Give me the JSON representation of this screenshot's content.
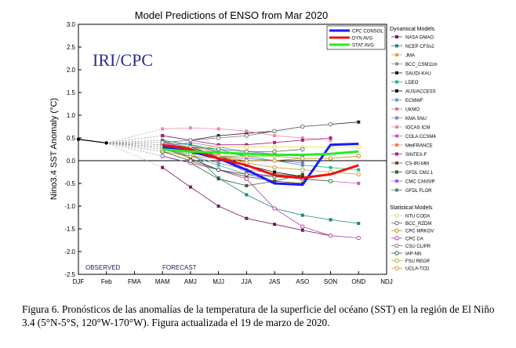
{
  "chart_data": {
    "type": "line",
    "title": "Model Predictions of ENSO from Mar 2020",
    "ylabel": "Nino3.4 SST Anomaly (°C)",
    "xlabel": "",
    "ylim": [
      -2.5,
      3.0
    ],
    "yticks": [
      "3.0",
      "2.5",
      "2.0",
      "1.5",
      "1.0",
      "0.5",
      "0.0",
      "-0.5",
      "-1.0",
      "-1.5",
      "-2.0",
      "-2.5"
    ],
    "categories": [
      "DJF",
      "Feb",
      "FMA",
      "MAM",
      "AMJ",
      "MJJ",
      "JJA",
      "JAS",
      "ASO",
      "SON",
      "OND",
      "NDJ"
    ],
    "grid": false,
    "logo_text": "IRI/CPC",
    "observed_label": "OBSERVED",
    "forecast_label": "FORECAST",
    "observed": {
      "x": [
        0,
        1
      ],
      "values": [
        0.47,
        0.39
      ]
    },
    "averages": [
      {
        "name": "CPC CONSOL",
        "color": "#1a1aff",
        "values": [
          0.3,
          0.2,
          0.05,
          -0.2,
          -0.5,
          -0.53,
          0.35,
          0.37
        ]
      },
      {
        "name": "DYN AVG",
        "color": "#ee1111",
        "values": [
          0.35,
          0.25,
          0.05,
          -0.1,
          -0.32,
          -0.38,
          -0.3,
          -0.1
        ]
      },
      {
        "name": "STAT AVG",
        "color": "#22ee22",
        "values": [
          0.25,
          0.2,
          0.18,
          0.15,
          0.13,
          0.13,
          0.15,
          0.2
        ]
      }
    ],
    "dynamical_title": "Dynamical Models",
    "dynamical_models": [
      {
        "name": "NASA GMAO",
        "color": "#7a1a5c",
        "values": [
          -0.15,
          -0.58,
          -1.0,
          -1.27,
          -1.4,
          -1.53,
          -1.65,
          null
        ]
      },
      {
        "name": "NCEP CFSv2",
        "color": "#1c8a6e",
        "values": [
          0.45,
          0.2,
          -0.38,
          -0.75,
          -1.05,
          -1.2,
          -1.3,
          -1.38
        ]
      },
      {
        "name": "JMA",
        "color": "#e8a33d",
        "values": [
          0.3,
          0.2,
          0.1,
          0.0,
          null,
          null,
          null,
          null
        ]
      },
      {
        "name": "BCC_CSM11m",
        "color": "#9a8a8a",
        "values": [
          0.25,
          0.1,
          -0.05,
          -0.2,
          -0.28,
          -0.35,
          null,
          null
        ]
      },
      {
        "name": "SAUDI-KAU",
        "color": "#222222",
        "values": [
          0.55,
          0.45,
          0.55,
          0.6,
          0.65,
          0.75,
          0.8,
          0.85
        ]
      },
      {
        "name": "LDEO",
        "color": "#19c08a",
        "values": [
          0.4,
          0.35,
          0.25,
          0.1,
          0.0,
          -0.1,
          -0.15,
          -0.2
        ]
      },
      {
        "name": "AUS/ACCESS",
        "color": "#111111",
        "values": [
          0.35,
          0.3,
          0.1,
          -0.1,
          -0.25,
          -0.35,
          null,
          null
        ]
      },
      {
        "name": "ECMWF",
        "color": "#44aadd",
        "values": [
          0.3,
          0.1,
          -0.1,
          -0.3,
          -0.45,
          null,
          null,
          null
        ]
      },
      {
        "name": "UKMO",
        "color": "#d97a7a",
        "values": [
          0.4,
          0.3,
          0.2,
          null,
          null,
          null,
          null,
          null
        ]
      },
      {
        "name": "KMA SNU",
        "color": "#9977cc",
        "values": [
          0.3,
          0.4,
          0.3,
          0.2,
          0.15,
          0.1,
          null,
          null
        ]
      },
      {
        "name": "IOCAS ICM",
        "color": "#ee88aa",
        "values": [
          0.7,
          0.72,
          0.7,
          0.65,
          0.55,
          0.5,
          0.45,
          null
        ]
      },
      {
        "name": "COLA CCSM4",
        "color": "#cc55cc",
        "values": [
          0.4,
          0.25,
          0.05,
          -0.25,
          -0.35,
          -0.4,
          -0.45,
          -0.5
        ]
      },
      {
        "name": "MetFRANCE",
        "color": "#ff7744",
        "values": [
          0.35,
          0.25,
          0.15,
          null,
          null,
          null,
          null,
          null
        ]
      },
      {
        "name": "SINTEX-F",
        "color": "#aa2288",
        "values": [
          0.55,
          0.45,
          0.35,
          0.35,
          0.4,
          0.45,
          0.5,
          null
        ]
      },
      {
        "name": "CS-IRI-MM",
        "color": "#7a4422",
        "values": [
          0.3,
          0.05,
          -0.2,
          -0.35,
          -0.45,
          -0.5,
          null,
          null
        ]
      },
      {
        "name": "GFDL CM2.1",
        "color": "#3a5a2a",
        "values": [
          0.1,
          -0.05,
          -0.4,
          -0.55,
          -0.45,
          -0.3,
          null,
          null
        ]
      },
      {
        "name": "CMC CANSIP",
        "color": "#aa55ee",
        "values": [
          0.3,
          0.2,
          0.1,
          0.05,
          0.0,
          -0.05,
          null,
          null
        ]
      },
      {
        "name": "GFDL FLOR",
        "color": "#448877",
        "values": [
          0.45,
          0.35,
          0.2,
          0.1,
          null,
          null,
          null,
          null
        ]
      }
    ],
    "statistical_title": "Statistical Models",
    "statistical_models": [
      {
        "name": "NTU CODA",
        "color": "#dddd44",
        "values": [
          0.3,
          0.3,
          0.3,
          0.3,
          0.3,
          0.3,
          0.3,
          0.3
        ]
      },
      {
        "name": "BCC_RZDM",
        "color": "#666666",
        "values": [
          0.35,
          0.3,
          0.25,
          0.2,
          0.2,
          0.25,
          null,
          null
        ]
      },
      {
        "name": "CPC MRKOV",
        "color": "#b8860b",
        "values": [
          0.2,
          0.1,
          0.05,
          0.0,
          0.0,
          0.05,
          0.05,
          0.1
        ]
      },
      {
        "name": "CPC CA",
        "color": "#aa44aa",
        "values": [
          0.1,
          -0.05,
          -0.2,
          -0.4,
          -1.05,
          -1.45,
          -1.65,
          -1.7
        ]
      },
      {
        "name": "CSU CLIPR",
        "color": "#777777",
        "values": [
          0.4,
          0.45,
          0.5,
          0.55,
          0.65,
          0.75,
          0.8,
          null
        ]
      },
      {
        "name": "IAP-NN",
        "color": "#336633",
        "values": [
          0.2,
          0.0,
          -0.2,
          -0.3,
          -0.35,
          -0.4,
          -0.45,
          null
        ]
      },
      {
        "name": "FSU REGR",
        "color": "#99bb33",
        "values": [
          0.25,
          0.15,
          0.1,
          0.1,
          0.1,
          0.05,
          null,
          null
        ]
      },
      {
        "name": "UCLA-TCD",
        "color": "#cc9933",
        "values": [
          0.3,
          0.25,
          0.1,
          -0.05,
          -0.15,
          -0.2,
          -0.25,
          -0.3
        ]
      }
    ]
  },
  "caption": "Figura 6. Pronósticos de las anomalías de la temperatura de la superficie del océano (SST) en la región de El Niño 3.4 (5°N-5°S, 120°W-170°W). Figura actualizada el 19 de marzo de 2020."
}
